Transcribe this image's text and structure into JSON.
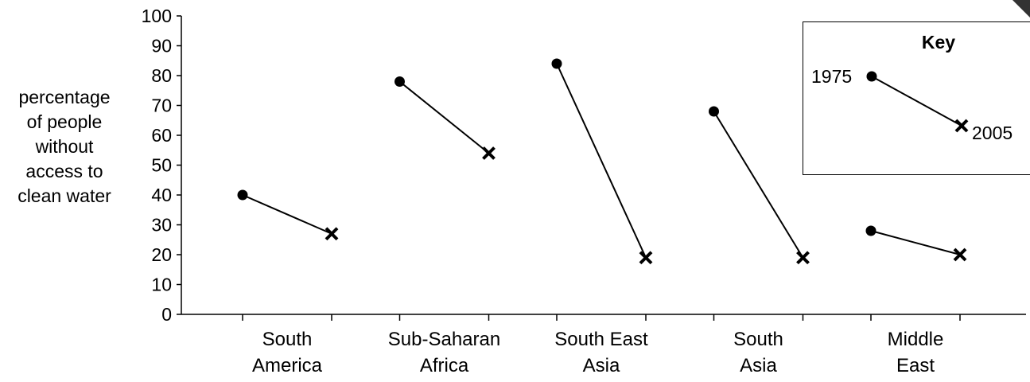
{
  "chart_data": {
    "type": "line",
    "ylabel": "percentage\nof people\nwithout\naccess to\nclean water",
    "xlabel": "",
    "ylim": [
      0,
      100
    ],
    "yticks": [
      0,
      10,
      20,
      30,
      40,
      50,
      60,
      70,
      80,
      90,
      100
    ],
    "grid": false,
    "categories": [
      "South\nAmerica",
      "Sub-Saharan\nAfrica",
      "South East\nAsia",
      "South\nAsia",
      "Middle\nEast"
    ],
    "series": [
      {
        "name": "1975",
        "marker": "circle",
        "values": [
          40,
          78,
          84,
          68,
          28
        ]
      },
      {
        "name": "2005",
        "marker": "cross",
        "values": [
          27,
          54,
          19,
          19,
          20
        ]
      }
    ],
    "legend": {
      "title": "Key",
      "position": "top-right",
      "labels": [
        "1975",
        "2005"
      ]
    }
  }
}
